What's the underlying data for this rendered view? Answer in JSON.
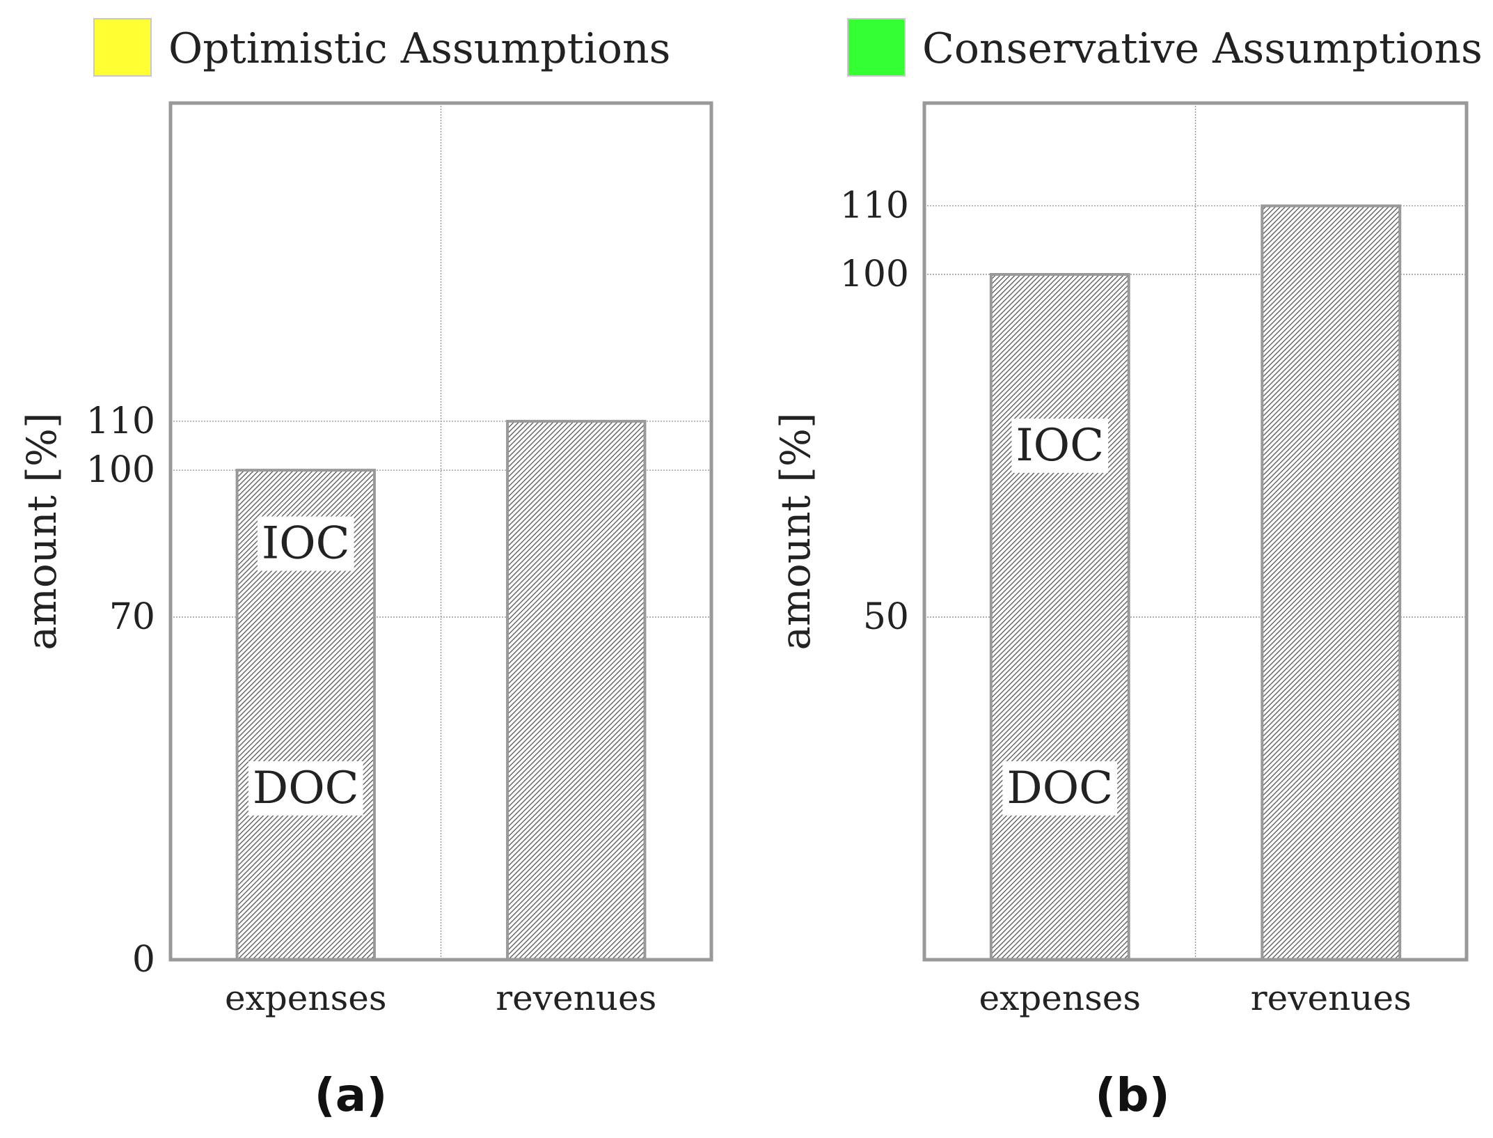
{
  "figure": {
    "panel_labels": [
      "(a)",
      "(b)"
    ]
  },
  "chart_data": [
    {
      "type": "bar",
      "title": "",
      "legend": {
        "label": "Optimistic Assumptions",
        "color": "#ffff33",
        "placement": "top-left"
      },
      "xlabel": "",
      "ylabel": "amount [%]",
      "categories": [
        "expenses",
        "revenues"
      ],
      "values": [
        100,
        110
      ],
      "yticks": [
        0,
        70,
        100,
        110
      ],
      "ylim": [
        0,
        175
      ],
      "bar_fill": "hatched grey",
      "annotations": [
        {
          "text": "IOC",
          "category": "expenses",
          "y": 85
        },
        {
          "text": "DOC",
          "category": "expenses",
          "y": 35
        }
      ],
      "grid": true
    },
    {
      "type": "bar",
      "title": "",
      "legend": {
        "label": "Conservative Assumptions",
        "color": "#33ff33",
        "placement": "top-left"
      },
      "xlabel": "",
      "ylabel": "amount [%]",
      "categories": [
        "expenses",
        "revenues"
      ],
      "values": [
        100,
        110
      ],
      "yticks": [
        50,
        100,
        110
      ],
      "ylim": [
        0,
        125
      ],
      "bar_fill": "hatched grey",
      "annotations": [
        {
          "text": "IOC",
          "category": "expenses",
          "y": 75
        },
        {
          "text": "DOC",
          "category": "expenses",
          "y": 25
        }
      ],
      "grid": true
    }
  ]
}
